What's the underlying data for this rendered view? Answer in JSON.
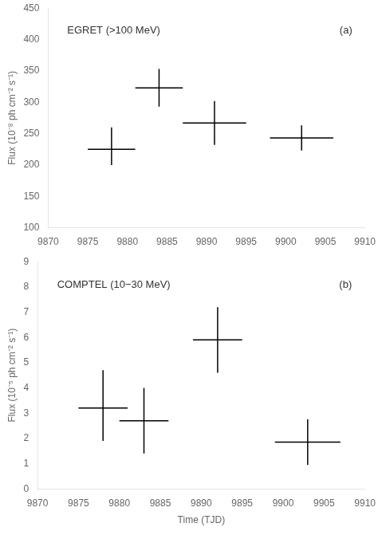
{
  "chart_data": [
    {
      "type": "scatter",
      "marker": "none",
      "color": "black",
      "annotations": [
        "EGRET (>100 MeV)",
        "(a)"
      ],
      "ylabel": "Flux (10⁻⁸ ph cm⁻² s⁻¹)",
      "x": [
        9878,
        9884,
        9891,
        9902
      ],
      "values": [
        225,
        323,
        267,
        243
      ],
      "xerr": [
        3,
        3,
        4,
        4
      ],
      "yerr_lo": [
        25,
        30,
        35,
        20
      ],
      "yerr_hi": [
        35,
        30,
        35,
        20
      ],
      "xlim": [
        9870,
        9910
      ],
      "xticks": [
        9870,
        9875,
        9880,
        9885,
        9890,
        9895,
        9900,
        9905,
        9910
      ],
      "ylim": [
        100,
        450
      ],
      "yticks": [
        100,
        150,
        200,
        250,
        300,
        350,
        400,
        450
      ],
      "grid": false
    },
    {
      "type": "scatter",
      "marker": "none",
      "color": "black",
      "annotations": [
        "COMPTEL (10−30 MeV)",
        "(b)"
      ],
      "ylabel": "Flux (10⁻⁵ ph cm⁻² s⁻¹)",
      "xlabel": "Time (TJD)",
      "x": [
        9878,
        9883,
        9892,
        9903
      ],
      "values": [
        3.2,
        2.7,
        5.9,
        1.85
      ],
      "xerr": [
        3,
        3,
        3,
        4
      ],
      "yerr_lo": [
        1.3,
        1.3,
        1.3,
        0.9
      ],
      "yerr_hi": [
        1.5,
        1.3,
        1.3,
        0.9
      ],
      "xlim": [
        9870,
        9910
      ],
      "xticks": [
        9870,
        9875,
        9880,
        9885,
        9890,
        9895,
        9900,
        9905,
        9910
      ],
      "ylim": [
        0,
        9
      ],
      "yticks": [
        0,
        1,
        2,
        3,
        4,
        5,
        6,
        7,
        8,
        9
      ],
      "grid": false
    }
  ]
}
